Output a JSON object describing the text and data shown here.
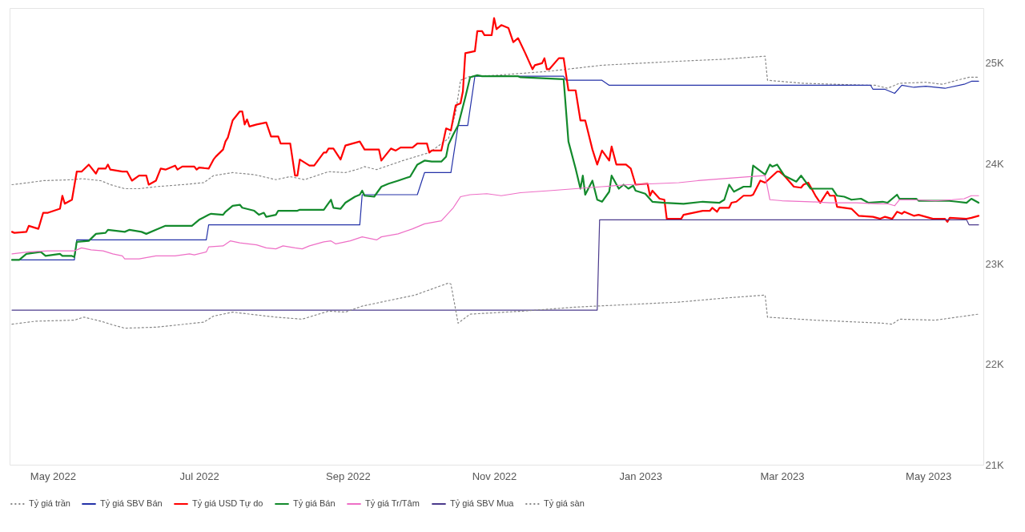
{
  "chart_data": {
    "type": "line",
    "xlim": [
      "2022-04-13",
      "2023-05-24"
    ],
    "xticks": [
      {
        "value": "2022-05-01",
        "label": "May 2022"
      },
      {
        "value": "2022-07-01",
        "label": "Jul 2022"
      },
      {
        "value": "2022-09-01",
        "label": "Sep 2022"
      },
      {
        "value": "2022-11-01",
        "label": "Nov 2022"
      },
      {
        "value": "2023-01-01",
        "label": "Jan 2023"
      },
      {
        "value": "2023-03-01",
        "label": "Mar 2023"
      },
      {
        "value": "2023-05-01",
        "label": "May 2023"
      }
    ],
    "ylim": [
      21000,
      25550
    ],
    "yticks": [
      {
        "value": 21000,
        "label": "21K"
      },
      {
        "value": 22000,
        "label": "22K"
      },
      {
        "value": 23000,
        "label": "23K"
      },
      {
        "value": 24000,
        "label": "24K"
      },
      {
        "value": 25000,
        "label": "25K"
      }
    ],
    "grid": false,
    "legend": "bottom",
    "marker": "none",
    "series": [
      {
        "name": "Tỷ giá trần",
        "color": "#888888",
        "line_style": "dotted",
        "x": [
          "2022-04-14",
          "2022-04-21",
          "2022-04-27",
          "2022-05-10",
          "2022-05-13",
          "2022-05-21",
          "2022-05-25",
          "2022-05-31",
          "2022-06-06",
          "2022-06-13",
          "2022-06-24",
          "2022-07-03",
          "2022-07-07",
          "2022-07-15",
          "2022-07-24",
          "2022-08-02",
          "2022-08-08",
          "2022-08-14",
          "2022-08-24",
          "2022-08-31",
          "2022-09-06",
          "2022-09-08",
          "2022-09-13",
          "2022-09-24",
          "2022-10-05",
          "2022-10-13",
          "2022-10-16",
          "2022-10-18",
          "2022-10-22",
          "2022-11-02",
          "2022-11-24",
          "2022-12-16",
          "2023-01-17",
          "2023-02-05",
          "2023-02-22",
          "2023-02-23",
          "2023-03-10",
          "2023-04-06",
          "2023-04-09",
          "2023-04-14",
          "2023-04-19",
          "2023-04-30",
          "2023-05-07",
          "2023-05-13",
          "2023-05-18",
          "2023-05-22"
        ],
        "values": [
          23790,
          23810,
          23830,
          23840,
          23850,
          23830,
          23790,
          23750,
          23750,
          23770,
          23790,
          23810,
          23880,
          23910,
          23890,
          23840,
          23870,
          23840,
          23920,
          23910,
          23950,
          23970,
          23940,
          24030,
          24110,
          24250,
          24510,
          24830,
          24870,
          24880,
          24920,
          24980,
          25020,
          25040,
          25070,
          24830,
          24800,
          24780,
          24780,
          24750,
          24800,
          24810,
          24790,
          24830,
          24860,
          24860
        ]
      },
      {
        "name": "Tỷ giá SBV Bán",
        "color": "#2432a8",
        "line_style": "solid",
        "x": [
          "2022-04-14",
          "2022-05-10",
          "2022-05-11",
          "2022-07-04",
          "2022-07-05",
          "2022-09-06",
          "2022-09-07",
          "2022-09-30",
          "2022-10-03",
          "2022-10-14",
          "2022-10-17",
          "2022-10-21",
          "2022-10-24",
          "2022-11-30",
          "2022-12-01",
          "2022-12-16",
          "2022-12-19",
          "2023-04-07",
          "2023-04-08",
          "2023-04-13",
          "2023-04-15",
          "2023-04-17",
          "2023-04-20",
          "2023-04-25",
          "2023-04-30",
          "2023-05-08",
          "2023-05-16",
          "2023-05-19",
          "2023-05-22"
        ],
        "values": [
          23040,
          23040,
          23240,
          23240,
          23390,
          23390,
          23690,
          23690,
          23910,
          23910,
          24380,
          24380,
          24870,
          24870,
          24830,
          24830,
          24780,
          24780,
          24740,
          24740,
          24720,
          24700,
          24780,
          24760,
          24770,
          24750,
          24790,
          24820,
          24820
        ]
      },
      {
        "name": "Tỷ giá USD Tự do",
        "color": "#ff0000",
        "line_style": "solid",
        "x": [
          "2022-04-14",
          "2022-04-15",
          "2022-04-20",
          "2022-04-21",
          "2022-04-25",
          "2022-04-27",
          "2022-04-29",
          "2022-05-04",
          "2022-05-05",
          "2022-05-06",
          "2022-05-09",
          "2022-05-11",
          "2022-05-13",
          "2022-05-16",
          "2022-05-19",
          "2022-05-20",
          "2022-05-23",
          "2022-05-24",
          "2022-05-25",
          "2022-05-30",
          "2022-06-01",
          "2022-06-03",
          "2022-06-06",
          "2022-06-09",
          "2022-06-10",
          "2022-06-13",
          "2022-06-15",
          "2022-06-17",
          "2022-06-21",
          "2022-06-22",
          "2022-06-24",
          "2022-06-29",
          "2022-06-30",
          "2022-07-01",
          "2022-07-05",
          "2022-07-07",
          "2022-07-08",
          "2022-07-11",
          "2022-07-12",
          "2022-07-13",
          "2022-07-15",
          "2022-07-18",
          "2022-07-19",
          "2022-07-20",
          "2022-07-21",
          "2022-07-22",
          "2022-07-25",
          "2022-07-29",
          "2022-07-31",
          "2022-08-03",
          "2022-08-04",
          "2022-08-08",
          "2022-08-10",
          "2022-08-11",
          "2022-08-12",
          "2022-08-16",
          "2022-08-18",
          "2022-08-22",
          "2022-08-23",
          "2022-08-24",
          "2022-08-26",
          "2022-08-29",
          "2022-08-31",
          "2022-09-06",
          "2022-09-08",
          "2022-09-14",
          "2022-09-15",
          "2022-09-19",
          "2022-09-21",
          "2022-09-23",
          "2022-09-28",
          "2022-09-30",
          "2022-10-04",
          "2022-10-05",
          "2022-10-06",
          "2022-10-10",
          "2022-10-12",
          "2022-10-14",
          "2022-10-16",
          "2022-10-18",
          "2022-10-19",
          "2022-10-20",
          "2022-10-24",
          "2022-10-25",
          "2022-10-27",
          "2022-10-28",
          "2022-10-31",
          "2022-11-01",
          "2022-11-02",
          "2022-11-04",
          "2022-11-07",
          "2022-11-09",
          "2022-11-11",
          "2022-11-14",
          "2022-11-17",
          "2022-11-18",
          "2022-11-21",
          "2022-11-22",
          "2022-11-23",
          "2022-11-24",
          "2022-11-28",
          "2022-11-30",
          "2022-12-02",
          "2022-12-05",
          "2022-12-07",
          "2022-12-09",
          "2022-12-12",
          "2022-12-14",
          "2022-12-16",
          "2022-12-19",
          "2022-12-20",
          "2022-12-22",
          "2022-12-26",
          "2022-12-28",
          "2022-12-30",
          "2023-01-04",
          "2023-01-05",
          "2023-01-06",
          "2023-01-09",
          "2023-01-11",
          "2023-01-12",
          "2023-01-18",
          "2023-01-19",
          "2023-01-27",
          "2023-01-30",
          "2023-01-31",
          "2023-02-02",
          "2023-02-03",
          "2023-02-07",
          "2023-02-08",
          "2023-02-10",
          "2023-02-13",
          "2023-02-16",
          "2023-02-17",
          "2023-02-20",
          "2023-02-22",
          "2023-02-27",
          "2023-02-28",
          "2023-03-02",
          "2023-03-06",
          "2023-03-09",
          "2023-03-10",
          "2023-03-12",
          "2023-03-15",
          "2023-03-17",
          "2023-03-20",
          "2023-03-21",
          "2023-03-23",
          "2023-03-24",
          "2023-03-30",
          "2023-04-02",
          "2023-04-08",
          "2023-04-11",
          "2023-04-13",
          "2023-04-16",
          "2023-04-18",
          "2023-04-20",
          "2023-04-21",
          "2023-04-25",
          "2023-04-27",
          "2023-04-30",
          "2023-05-03",
          "2023-05-08",
          "2023-05-09",
          "2023-05-10",
          "2023-05-17",
          "2023-05-19",
          "2023-05-22"
        ],
        "values": [
          23320,
          23310,
          23320,
          23380,
          23350,
          23510,
          23510,
          23550,
          23680,
          23600,
          23640,
          23920,
          23920,
          23990,
          23900,
          23950,
          23950,
          23990,
          23940,
          23920,
          23920,
          23830,
          23880,
          23880,
          23790,
          23830,
          23950,
          23940,
          23980,
          23940,
          23970,
          23970,
          23940,
          23960,
          23950,
          24040,
          24070,
          24140,
          24220,
          24260,
          24430,
          24520,
          24520,
          24390,
          24440,
          24370,
          24390,
          24410,
          24270,
          24270,
          24200,
          24200,
          23880,
          23880,
          24040,
          23980,
          23980,
          24110,
          24110,
          24150,
          24150,
          24040,
          24180,
          24220,
          24140,
          24140,
          24030,
          24150,
          24130,
          24160,
          24160,
          24200,
          24200,
          24110,
          24130,
          24130,
          24350,
          24330,
          24580,
          24600,
          24720,
          25100,
          25120,
          25320,
          25320,
          25280,
          25280,
          25450,
          25340,
          25380,
          25350,
          25210,
          25250,
          25100,
          24940,
          24980,
          25000,
          25050,
          24940,
          24940,
          25050,
          25050,
          24730,
          24730,
          24430,
          24430,
          24140,
          23990,
          24130,
          24030,
          24170,
          23990,
          23990,
          23950,
          23790,
          23800,
          23680,
          23730,
          23650,
          23640,
          23450,
          23450,
          23490,
          23530,
          23530,
          23560,
          23520,
          23560,
          23560,
          23610,
          23620,
          23680,
          23680,
          23690,
          23830,
          23810,
          23920,
          23920,
          23880,
          23770,
          23760,
          23790,
          23810,
          23680,
          23610,
          23720,
          23680,
          23680,
          23570,
          23550,
          23480,
          23470,
          23450,
          23470,
          23450,
          23520,
          23500,
          23520,
          23480,
          23490,
          23470,
          23450,
          23450,
          23420,
          23460,
          23450,
          23460,
          23480
        ]
      },
      {
        "name": "Tỷ giá Bán",
        "color": "#138a2c",
        "line_style": "solid",
        "x": [
          "2022-04-14",
          "2022-04-17",
          "2022-04-20",
          "2022-04-26",
          "2022-04-28",
          "2022-05-04",
          "2022-05-05",
          "2022-05-09",
          "2022-05-10",
          "2022-05-11",
          "2022-05-16",
          "2022-05-19",
          "2022-05-23",
          "2022-05-24",
          "2022-05-31",
          "2022-06-02",
          "2022-06-07",
          "2022-06-09",
          "2022-06-14",
          "2022-06-17",
          "2022-06-28",
          "2022-07-01",
          "2022-07-05",
          "2022-07-06",
          "2022-07-11",
          "2022-07-12",
          "2022-07-15",
          "2022-07-18",
          "2022-07-19",
          "2022-07-24",
          "2022-07-26",
          "2022-07-28",
          "2022-07-29",
          "2022-08-02",
          "2022-08-03",
          "2022-08-11",
          "2022-08-12",
          "2022-08-22",
          "2022-08-25",
          "2022-08-26",
          "2022-08-29",
          "2022-08-31",
          "2022-09-04",
          "2022-09-06",
          "2022-09-07",
          "2022-09-08",
          "2022-09-12",
          "2022-09-15",
          "2022-09-18",
          "2022-09-22",
          "2022-09-27",
          "2022-09-30",
          "2022-10-03",
          "2022-10-06",
          "2022-10-10",
          "2022-10-12",
          "2022-10-13",
          "2022-10-15",
          "2022-10-17",
          "2022-10-20",
          "2022-10-22",
          "2022-10-25",
          "2022-10-27",
          "2022-11-11",
          "2022-11-12",
          "2022-11-30",
          "2022-12-02",
          "2022-12-05",
          "2022-12-07",
          "2022-12-08",
          "2022-12-09",
          "2022-12-12",
          "2022-12-14",
          "2022-12-16",
          "2022-12-19",
          "2022-12-20",
          "2022-12-23",
          "2022-12-25",
          "2022-12-27",
          "2022-12-29",
          "2022-12-30",
          "2023-01-03",
          "2023-01-06",
          "2023-01-11",
          "2023-01-19",
          "2023-01-27",
          "2023-02-03",
          "2023-02-05",
          "2023-02-07",
          "2023-02-09",
          "2023-02-13",
          "2023-02-16",
          "2023-02-17",
          "2023-02-22",
          "2023-02-24",
          "2023-02-25",
          "2023-02-27",
          "2023-03-02",
          "2023-03-07",
          "2023-03-09",
          "2023-03-13",
          "2023-03-22",
          "2023-03-24",
          "2023-03-27",
          "2023-03-30",
          "2023-04-03",
          "2023-04-06",
          "2023-04-12",
          "2023-04-14",
          "2023-04-18",
          "2023-04-19",
          "2023-04-26",
          "2023-04-27",
          "2023-05-09",
          "2023-05-13",
          "2023-05-17",
          "2023-05-19",
          "2023-05-22"
        ],
        "values": [
          23040,
          23040,
          23100,
          23120,
          23080,
          23100,
          23080,
          23080,
          23070,
          23220,
          23230,
          23300,
          23310,
          23340,
          23320,
          23340,
          23320,
          23300,
          23350,
          23380,
          23380,
          23440,
          23490,
          23500,
          23490,
          23520,
          23580,
          23590,
          23560,
          23530,
          23490,
          23510,
          23470,
          23490,
          23530,
          23530,
          23540,
          23540,
          23640,
          23560,
          23550,
          23610,
          23670,
          23690,
          23730,
          23680,
          23670,
          23770,
          23800,
          23830,
          23870,
          23990,
          24030,
          24020,
          24020,
          24070,
          24190,
          24290,
          24380,
          24660,
          24860,
          24880,
          24870,
          24870,
          24860,
          24840,
          24220,
          23950,
          23750,
          23880,
          23690,
          23830,
          23640,
          23620,
          23720,
          23880,
          23750,
          23790,
          23750,
          23780,
          23730,
          23700,
          23620,
          23610,
          23600,
          23620,
          23610,
          23640,
          23790,
          23720,
          23770,
          23770,
          23980,
          23890,
          23990,
          23970,
          23990,
          23880,
          23820,
          23880,
          23750,
          23750,
          23680,
          23670,
          23640,
          23650,
          23610,
          23620,
          23610,
          23690,
          23650,
          23650,
          23630,
          23630,
          23620,
          23610,
          23650,
          23610
        ]
      },
      {
        "name": "Tỷ giá Tr/Tâm",
        "color": "#ee6fc6",
        "line_style": "solid",
        "x": [
          "2022-04-14",
          "2022-04-21",
          "2022-04-29",
          "2022-05-10",
          "2022-05-13",
          "2022-05-17",
          "2022-05-22",
          "2022-05-26",
          "2022-05-30",
          "2022-05-31",
          "2022-06-06",
          "2022-06-13",
          "2022-06-21",
          "2022-06-27",
          "2022-06-29",
          "2022-07-04",
          "2022-07-05",
          "2022-07-11",
          "2022-07-14",
          "2022-07-18",
          "2022-07-25",
          "2022-07-29",
          "2022-08-02",
          "2022-08-05",
          "2022-08-10",
          "2022-08-13",
          "2022-08-16",
          "2022-08-22",
          "2022-08-25",
          "2022-08-27",
          "2022-09-02",
          "2022-09-07",
          "2022-09-13",
          "2022-09-15",
          "2022-09-22",
          "2022-09-28",
          "2022-10-03",
          "2022-10-10",
          "2022-10-15",
          "2022-10-18",
          "2022-10-22",
          "2022-10-29",
          "2022-11-04",
          "2022-11-12",
          "2022-11-24",
          "2022-12-05",
          "2022-12-16",
          "2022-12-27",
          "2023-01-07",
          "2023-01-17",
          "2023-01-25",
          "2023-02-05",
          "2023-02-16",
          "2023-02-22",
          "2023-02-24",
          "2023-03-01",
          "2023-03-13",
          "2023-03-21",
          "2023-04-01",
          "2023-04-10",
          "2023-04-14",
          "2023-04-17",
          "2023-04-19",
          "2023-04-24",
          "2023-05-04",
          "2023-05-11",
          "2023-05-16",
          "2023-05-19",
          "2023-05-22"
        ],
        "values": [
          23100,
          23120,
          23130,
          23130,
          23160,
          23140,
          23130,
          23100,
          23080,
          23050,
          23050,
          23080,
          23080,
          23100,
          23090,
          23120,
          23170,
          23180,
          23230,
          23210,
          23190,
          23160,
          23150,
          23180,
          23160,
          23150,
          23180,
          23220,
          23230,
          23200,
          23230,
          23270,
          23240,
          23270,
          23300,
          23350,
          23400,
          23430,
          23560,
          23670,
          23690,
          23700,
          23680,
          23710,
          23730,
          23750,
          23770,
          23790,
          23800,
          23810,
          23830,
          23850,
          23870,
          23880,
          23640,
          23630,
          23620,
          23610,
          23610,
          23600,
          23600,
          23580,
          23640,
          23640,
          23630,
          23640,
          23650,
          23680,
          23680
        ]
      },
      {
        "name": "Tỷ giá SBV Mua",
        "color": "#4b3a8c",
        "line_style": "solid",
        "x": [
          "2022-04-14",
          "2022-12-14",
          "2022-12-15",
          "2023-05-17",
          "2023-05-18",
          "2023-05-22"
        ],
        "values": [
          22540,
          22540,
          23440,
          23440,
          23390,
          23390
        ]
      },
      {
        "name": "Tỷ giá sàn",
        "color": "#888888",
        "line_style": "dotted",
        "x": [
          "2022-04-14",
          "2022-04-24",
          "2022-05-10",
          "2022-05-14",
          "2022-05-21",
          "2022-05-25",
          "2022-05-31",
          "2022-06-13",
          "2022-07-03",
          "2022-07-07",
          "2022-07-15",
          "2022-08-02",
          "2022-08-13",
          "2022-08-24",
          "2022-08-31",
          "2022-09-07",
          "2022-09-29",
          "2022-10-13",
          "2022-10-14",
          "2022-10-17",
          "2022-10-22",
          "2022-11-13",
          "2022-12-05",
          "2023-01-17",
          "2023-02-05",
          "2023-02-22",
          "2023-02-23",
          "2023-03-15",
          "2023-04-12",
          "2023-04-16",
          "2023-04-19",
          "2023-05-04",
          "2023-05-16",
          "2023-05-22"
        ],
        "values": [
          22400,
          22430,
          22440,
          22470,
          22430,
          22400,
          22360,
          22370,
          22420,
          22480,
          22520,
          22470,
          22450,
          22530,
          22520,
          22580,
          22690,
          22810,
          22800,
          22410,
          22500,
          22530,
          22570,
          22620,
          22660,
          22690,
          22470,
          22440,
          22410,
          22400,
          22450,
          22440,
          22480,
          22500
        ]
      }
    ]
  }
}
